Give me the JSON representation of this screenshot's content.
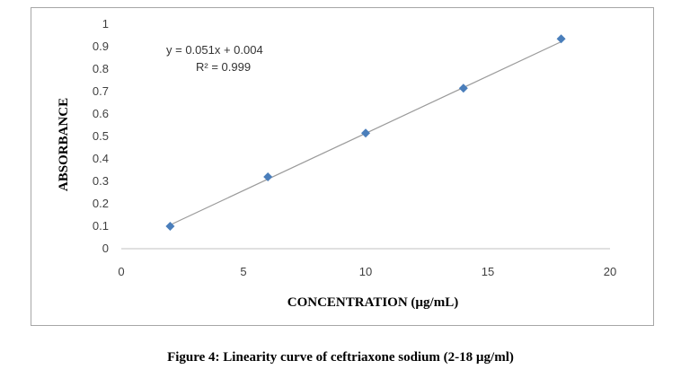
{
  "caption": "Figure 4: Linearity curve of ceftriaxone sodium (2-18 µg/ml)",
  "chart_data": {
    "type": "scatter",
    "xlabel": "CONCENTRATION (µg/mL)",
    "ylabel": "ABSORBANCE",
    "xlim": [
      0,
      20
    ],
    "ylim": [
      0,
      1
    ],
    "x_ticks": [
      "0",
      "5",
      "10",
      "15",
      "20"
    ],
    "y_ticks": [
      "0",
      "0.1",
      "0.2",
      "0.3",
      "0.4",
      "0.5",
      "0.6",
      "0.7",
      "0.8",
      "0.9",
      "1"
    ],
    "x_tick_values": [
      0,
      5,
      10,
      15,
      20
    ],
    "y_tick_values": [
      0,
      0.1,
      0.2,
      0.3,
      0.4,
      0.5,
      0.6,
      0.7,
      0.8,
      0.9,
      1
    ],
    "points": [
      {
        "x": 2,
        "y": 0.1
      },
      {
        "x": 6,
        "y": 0.32
      },
      {
        "x": 10,
        "y": 0.515
      },
      {
        "x": 14,
        "y": 0.715
      },
      {
        "x": 18,
        "y": 0.935
      }
    ],
    "trendline": {
      "slope": 0.051,
      "intercept": 0.004,
      "x_range": [
        2,
        18
      ]
    },
    "equation_label": "y = 0.051x + 0.004",
    "r2_label": "R² = 0.999",
    "grid": false,
    "legend": "none",
    "marker_color": "#4a7ebb",
    "line_color": "#9a9a9a"
  }
}
